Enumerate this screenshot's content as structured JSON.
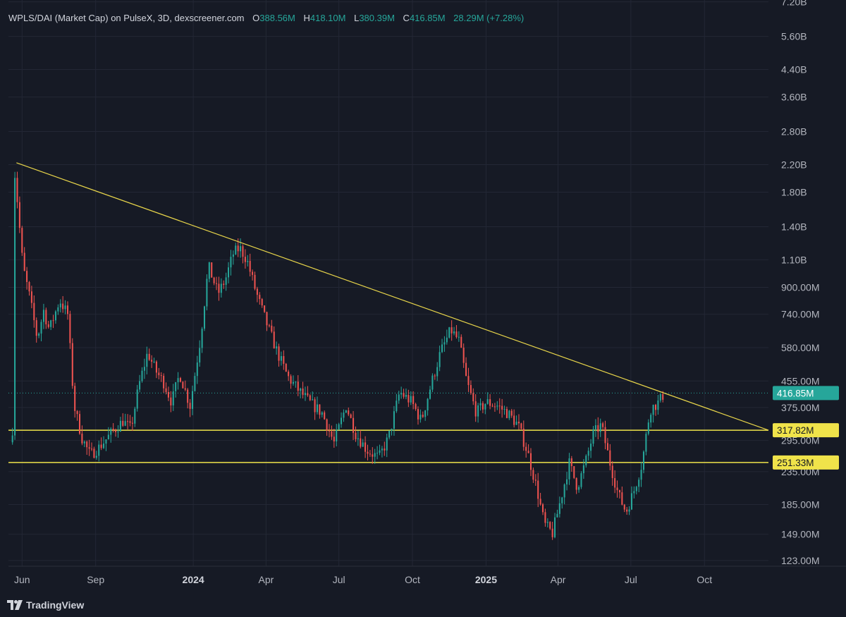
{
  "header": {
    "symbol": "WPLS/DAI (Market Cap) on PulseX, 3D, dexscreener.com",
    "o_label": "O",
    "o_value": "388.56M",
    "h_label": "H",
    "h_value": "418.10M",
    "l_label": "L",
    "l_value": "380.39M",
    "c_label": "C",
    "c_value": "416.85M",
    "change": "28.29M (+7.28%)"
  },
  "branding": {
    "logo_text": "TradingView",
    "icon": "tradingview-logo-icon"
  },
  "colors": {
    "background": "#161a25",
    "grid": "#232735",
    "up": "#26a69a",
    "down": "#ef5350",
    "trendline": "#e8d54a",
    "level_line": "#f0e34a",
    "text": "#b2b5be"
  },
  "chart_data": {
    "type": "candlestick",
    "y_scale": "log",
    "ylim": [
      118000000,
      7300000000
    ],
    "y_ticks": [
      {
        "value": 7200000000,
        "label": "7.20B"
      },
      {
        "value": 5600000000,
        "label": "5.60B"
      },
      {
        "value": 4400000000,
        "label": "4.40B"
      },
      {
        "value": 3600000000,
        "label": "3.60B"
      },
      {
        "value": 2800000000,
        "label": "2.80B"
      },
      {
        "value": 2200000000,
        "label": "2.20B"
      },
      {
        "value": 1800000000,
        "label": "1.80B"
      },
      {
        "value": 1400000000,
        "label": "1.40B"
      },
      {
        "value": 1100000000,
        "label": "1.10B"
      },
      {
        "value": 900000000,
        "label": "900.00M"
      },
      {
        "value": 740000000,
        "label": "740.00M"
      },
      {
        "value": 580000000,
        "label": "580.00M"
      },
      {
        "value": 455000000,
        "label": "455.00M"
      },
      {
        "value": 375000000,
        "label": "375.00M"
      },
      {
        "value": 295000000,
        "label": "295.00M"
      },
      {
        "value": 235000000,
        "label": "235.00M"
      },
      {
        "value": 185000000,
        "label": "185.00M"
      },
      {
        "value": 149000000,
        "label": "149.00M"
      },
      {
        "value": 123000000,
        "label": "123.00M"
      }
    ],
    "x_ticks": [
      {
        "date": "2023-06-01",
        "label": "Jun",
        "bold": false
      },
      {
        "date": "2023-09-01",
        "label": "Sep",
        "bold": false
      },
      {
        "date": "2024-01-01",
        "label": "2024",
        "bold": true
      },
      {
        "date": "2024-04-01",
        "label": "Apr",
        "bold": false
      },
      {
        "date": "2024-07-01",
        "label": "Jul",
        "bold": false
      },
      {
        "date": "2024-10-01",
        "label": "Oct",
        "bold": false
      },
      {
        "date": "2025-01-01",
        "label": "2025",
        "bold": true
      },
      {
        "date": "2025-04-01",
        "label": "Apr",
        "bold": false
      },
      {
        "date": "2025-07-01",
        "label": "Jul",
        "bold": false
      },
      {
        "date": "2025-10-01",
        "label": "Oct",
        "bold": false
      }
    ],
    "x_range": [
      "2023-05-15",
      "2025-12-20"
    ],
    "horizontal_levels": [
      {
        "value": 317820000,
        "label": "317.82M"
      },
      {
        "value": 251330000,
        "label": "251.33M"
      }
    ],
    "last_price": {
      "value": 416850000,
      "label": "416.85M"
    },
    "trendline": {
      "start": {
        "date": "2023-05-25",
        "value": 2230000000
      },
      "end": {
        "date": "2025-12-20",
        "value": 318000000
      }
    },
    "price_path": [
      [
        "2023-05-20",
        320000000
      ],
      [
        "2023-05-23",
        2050000000
      ],
      [
        "2023-05-26",
        1700000000
      ],
      [
        "2023-06-02",
        1050000000
      ],
      [
        "2023-06-10",
        850000000
      ],
      [
        "2023-06-20",
        620000000
      ],
      [
        "2023-06-28",
        760000000
      ],
      [
        "2023-07-05",
        660000000
      ],
      [
        "2023-07-18",
        820000000
      ],
      [
        "2023-07-28",
        740000000
      ],
      [
        "2023-08-05",
        380000000
      ],
      [
        "2023-08-15",
        300000000
      ],
      [
        "2023-08-25",
        265000000
      ],
      [
        "2023-09-05",
        280000000
      ],
      [
        "2023-09-20",
        310000000
      ],
      [
        "2023-10-05",
        340000000
      ],
      [
        "2023-10-15",
        320000000
      ],
      [
        "2023-10-25",
        440000000
      ],
      [
        "2023-11-05",
        560000000
      ],
      [
        "2023-11-15",
        490000000
      ],
      [
        "2023-11-25",
        450000000
      ],
      [
        "2023-12-05",
        390000000
      ],
      [
        "2023-12-15",
        480000000
      ],
      [
        "2023-12-28",
        380000000
      ],
      [
        "2024-01-10",
        620000000
      ],
      [
        "2024-01-20",
        1050000000
      ],
      [
        "2024-02-01",
        860000000
      ],
      [
        "2024-02-10",
        950000000
      ],
      [
        "2024-02-20",
        1150000000
      ],
      [
        "2024-02-28",
        1200000000
      ],
      [
        "2024-03-08",
        1100000000
      ],
      [
        "2024-03-20",
        860000000
      ],
      [
        "2024-04-01",
        700000000
      ],
      [
        "2024-04-15",
        560000000
      ],
      [
        "2024-04-28",
        470000000
      ],
      [
        "2024-05-10",
        430000000
      ],
      [
        "2024-05-25",
        390000000
      ],
      [
        "2024-06-10",
        360000000
      ],
      [
        "2024-06-25",
        290000000
      ],
      [
        "2024-07-10",
        380000000
      ],
      [
        "2024-07-22",
        310000000
      ],
      [
        "2024-08-05",
        275000000
      ],
      [
        "2024-08-20",
        260000000
      ],
      [
        "2024-09-01",
        300000000
      ],
      [
        "2024-09-15",
        420000000
      ],
      [
        "2024-09-30",
        390000000
      ],
      [
        "2024-10-12",
        340000000
      ],
      [
        "2024-10-25",
        450000000
      ],
      [
        "2024-11-05",
        560000000
      ],
      [
        "2024-11-18",
        660000000
      ],
      [
        "2024-11-28",
        610000000
      ],
      [
        "2024-12-08",
        450000000
      ],
      [
        "2024-12-20",
        360000000
      ],
      [
        "2025-01-01",
        390000000
      ],
      [
        "2025-01-15",
        380000000
      ],
      [
        "2025-01-28",
        360000000
      ],
      [
        "2025-02-10",
        330000000
      ],
      [
        "2025-02-22",
        270000000
      ],
      [
        "2025-03-05",
        210000000
      ],
      [
        "2025-03-15",
        160000000
      ],
      [
        "2025-03-25",
        150000000
      ],
      [
        "2025-04-05",
        195000000
      ],
      [
        "2025-04-15",
        250000000
      ],
      [
        "2025-04-25",
        210000000
      ],
      [
        "2025-05-05",
        250000000
      ],
      [
        "2025-05-15",
        310000000
      ],
      [
        "2025-05-25",
        330000000
      ],
      [
        "2025-06-05",
        250000000
      ],
      [
        "2025-06-15",
        200000000
      ],
      [
        "2025-06-25",
        175000000
      ],
      [
        "2025-07-05",
        205000000
      ],
      [
        "2025-07-15",
        250000000
      ],
      [
        "2025-07-25",
        370000000
      ],
      [
        "2025-08-05",
        390000000
      ],
      [
        "2025-08-12",
        416850000
      ]
    ]
  }
}
